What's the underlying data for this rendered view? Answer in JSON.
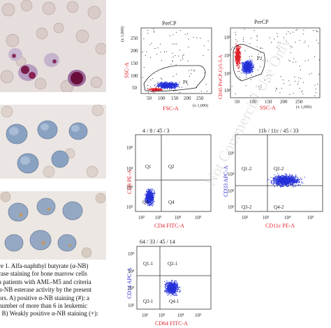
{
  "figure": {
    "watermark": "Not Commercial Use Only",
    "panels": {
      "top_left": {
        "title": "PerCP",
        "xlabel": "FSC-A",
        "ylabel": "SSC-A",
        "x_mult": "(x 1,000)",
        "y_mult": "(x 1,000)",
        "gate": "P1",
        "x_ticks": [
          "50",
          "100",
          "150",
          "200",
          "250"
        ],
        "y_ticks": [
          "50",
          "100",
          "150",
          "200",
          "250"
        ]
      },
      "top_right": {
        "title": "PerCP",
        "xlabel": "SSC-A",
        "ylabel": "CD45 PerCP-Cy5-5-A",
        "x_mult": "(x 1,000)",
        "gate": "P2",
        "x_ticks": [
          "50",
          "100",
          "150",
          "200",
          "250"
        ],
        "y_ticks": [
          "10²",
          "10³",
          "10⁴",
          "10⁵"
        ]
      },
      "mid_left": {
        "title": "4 / 8 / 45 / 3",
        "xlabel": "CD4 FITC-A",
        "ylabel": "CD8 PE-A",
        "quadrants": [
          "Q1",
          "Q2",
          "Q3",
          "Q4"
        ],
        "x_ticks": [
          "10²",
          "10³",
          "10⁴",
          "10⁵"
        ],
        "y_ticks": [
          "10²",
          "10³",
          "10⁴",
          "10⁵"
        ]
      },
      "mid_right": {
        "title": "11b / 11c / 45 / 33",
        "xlabel": "CD11c PE-A",
        "ylabel": "CD33 APC-A",
        "quadrants": [
          "Q1-2",
          "Q2-2",
          "Q3-2",
          "Q4-2"
        ],
        "x_ticks": [
          "10²",
          "10³",
          "10⁴",
          "10⁵"
        ],
        "y_ticks": [
          "10²",
          "10³",
          "10⁴",
          "10⁵"
        ]
      },
      "bottom": {
        "title": "64 / 33 / 45 / 14",
        "xlabel": "CD64 FITC-A",
        "ylabel": "CD14 APC-A",
        "quadrants": [
          "Q1-1",
          "Q2-1",
          "Q3-1",
          "Q4-1"
        ],
        "x_ticks": [
          "10²",
          "10³",
          "10⁴",
          "10⁵"
        ],
        "y_ticks": [
          "10²",
          "10³",
          "10⁴",
          "10⁵"
        ]
      }
    },
    "caption_lines": [
      "re 1. Alfa-naphthyl butyrate (α-NB)",
      "rase staining for bone marrow cells",
      "a patients with AML-M5 and criteria",
      "α-NB esterase activity by the present",
      "ors. A) positive α-NB staining (#): a",
      "number of more than 6 in leukemic",
      ". B) Weakly positive α-NB staining (+):"
    ]
  },
  "colors": {
    "dots_blue": "#2430d8",
    "dots_red": "#e0202a",
    "axis_red": "#e0202a",
    "axis_blue": "#2a2ad0"
  }
}
